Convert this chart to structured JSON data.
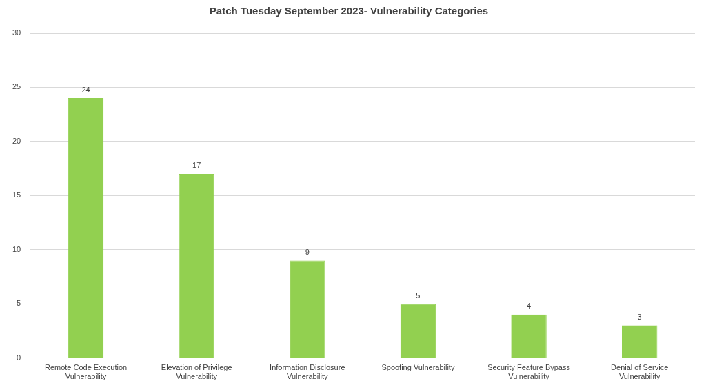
{
  "chart_data": {
    "type": "bar",
    "title": "Patch Tuesday September 2023- Vulnerability Categories",
    "categories": [
      "Remote Code Execution Vulnerability",
      "Elevation of Privilege Vulnerability",
      "Information Disclosure Vulnerability",
      "Spoofing Vulnerability",
      "Security Feature Bypass Vulnerability",
      "Denial of Service Vulnerability"
    ],
    "values": [
      24,
      17,
      9,
      5,
      4,
      3
    ],
    "color": "#92d050",
    "ylim": [
      0,
      30
    ],
    "yticks": [
      0,
      5,
      10,
      15,
      20,
      25,
      30
    ],
    "grid": "y",
    "data_labels": true,
    "legend": false
  }
}
